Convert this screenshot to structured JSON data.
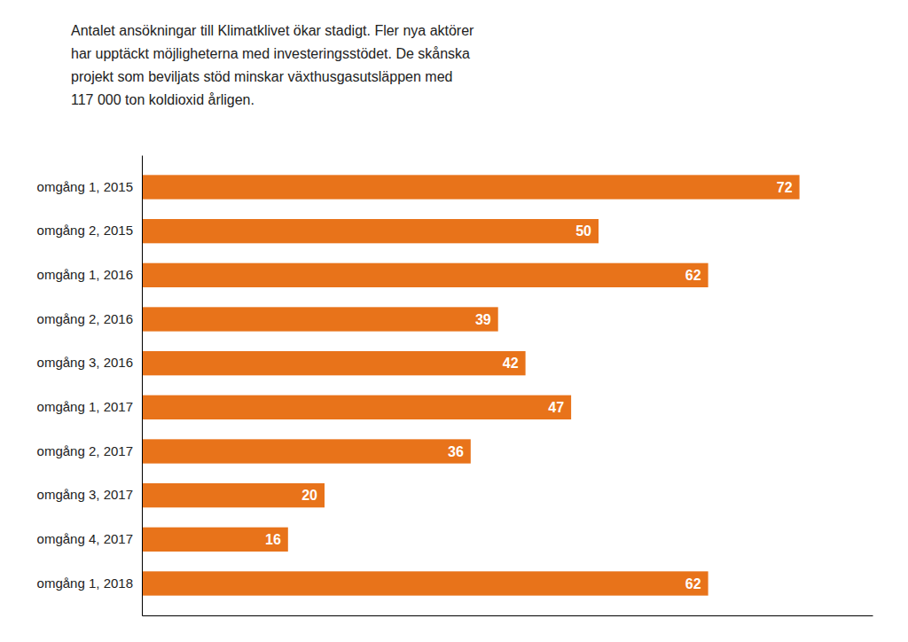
{
  "chart_data": {
    "type": "bar",
    "orientation": "horizontal",
    "title": "Antalet ansökningar till Klimatklivet ökar stadigt. Fler nya aktörer\nhar upptäckt möjligheterna med investeringsstödet. De skånska\nprojekt som beviljats stöd minskar växthusgasutsläppen med\n117 000 ton koldioxid årligen.",
    "categories": [
      "omgång 1, 2015",
      "omgång 2, 2015",
      "omgång 1, 2016",
      "omgång 2, 2016",
      "omgång 3, 2016",
      "omgång 1, 2017",
      "omgång 2, 2017",
      "omgång 3, 2017",
      "omgång 4, 2017",
      "omgång 1, 2018"
    ],
    "values": [
      72,
      50,
      62,
      39,
      42,
      47,
      36,
      20,
      16,
      62
    ],
    "color": "#E8731A",
    "xlim": [
      0,
      80
    ],
    "data_labels": true,
    "tick_labels": "y",
    "grid": false
  }
}
